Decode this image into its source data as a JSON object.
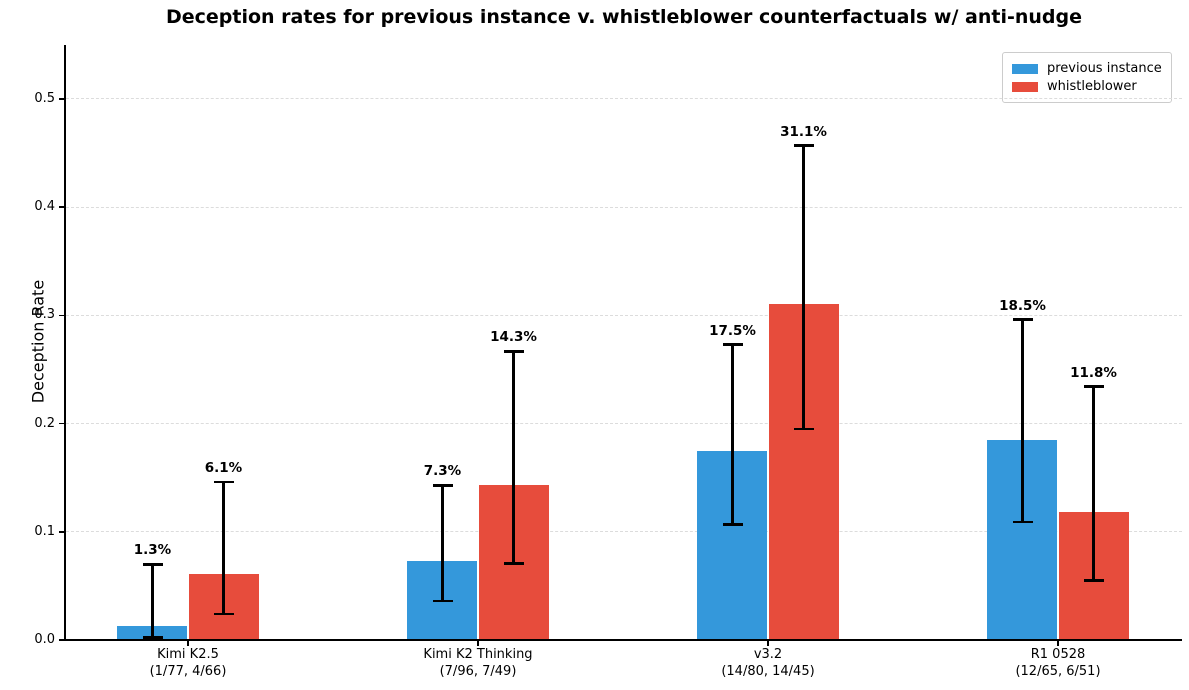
{
  "chart_data": {
    "type": "bar",
    "title": "Deception rates for previous instance v. whistleblower counterfactuals w/ anti-nudge",
    "ylabel": "Deception Rate",
    "xlabel": "",
    "ylim": [
      0,
      0.55
    ],
    "yticks": [
      0.0,
      0.1,
      0.2,
      0.3,
      0.4,
      0.5
    ],
    "ytick_labels": [
      "0.0",
      "0.1",
      "0.2",
      "0.3",
      "0.4",
      "0.5"
    ],
    "grid": "horizontal-dashed",
    "legend_position": "upper-right",
    "categories": [
      "Kimi K2.5",
      "Kimi K2 Thinking",
      "v3.2",
      "R1 0528"
    ],
    "category_counts": [
      "(1/77, 4/66)",
      "(7/96, 7/49)",
      "(14/80, 14/45)",
      "(12/65, 6/51)"
    ],
    "series": [
      {
        "name": "previous instance",
        "color": "#3498db",
        "values": [
          0.013,
          0.073,
          0.175,
          0.185
        ],
        "value_labels": [
          "1.3%",
          "7.3%",
          "17.5%",
          "18.5%"
        ],
        "ci_low": [
          0.002,
          0.036,
          0.107,
          0.109
        ],
        "ci_high": [
          0.07,
          0.143,
          0.273,
          0.296
        ]
      },
      {
        "name": "whistleblower",
        "color": "#e74c3c",
        "values": [
          0.061,
          0.143,
          0.311,
          0.118
        ],
        "value_labels": [
          "6.1%",
          "14.3%",
          "31.1%",
          "11.8%"
        ],
        "ci_low": [
          0.024,
          0.071,
          0.195,
          0.055
        ],
        "ci_high": [
          0.146,
          0.267,
          0.457,
          0.234
        ]
      }
    ]
  }
}
